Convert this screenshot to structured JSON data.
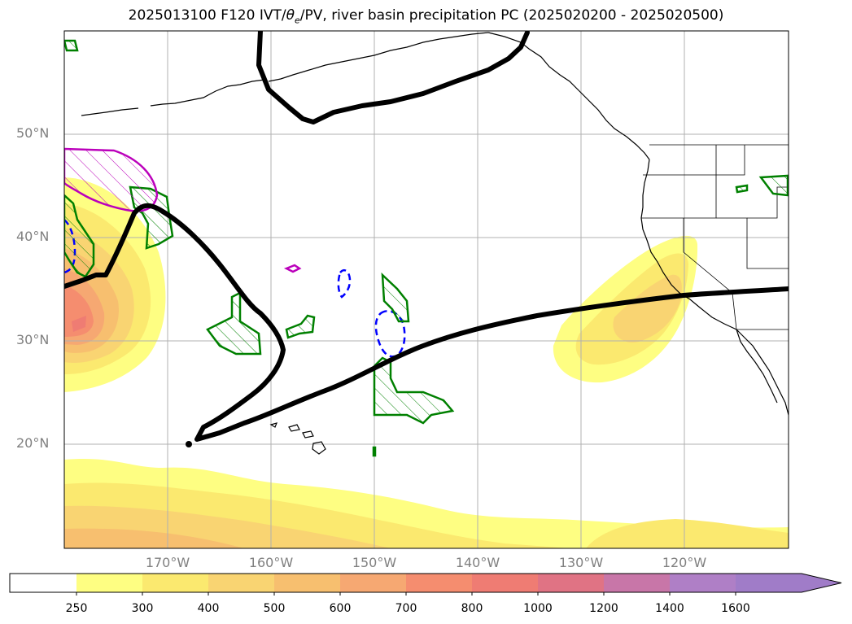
{
  "title": {
    "main": "2025013100 F120 IVT/",
    "theta": "θ",
    "sub": "e",
    "rest": "/PV, river basin precipitation PC (2025020200 - 2025020500)"
  },
  "map": {
    "projection": "PlateCarree",
    "extent_lon": [
      -180,
      -110
    ],
    "extent_lat": [
      10,
      60
    ],
    "gridlines": true,
    "lat_labels": [
      "50°N",
      "40°N",
      "30°N",
      "20°N"
    ],
    "lon_labels": [
      "170°W",
      "160°W",
      "150°W",
      "140°W",
      "130°W",
      "120°W"
    ]
  },
  "colorbar": {
    "ticks": [
      "250",
      "300",
      "400",
      "500",
      "600",
      "700",
      "800",
      "1000",
      "1200",
      "1400",
      "1600"
    ],
    "colors": [
      "#ffffff",
      "#fefe82",
      "#fbe96f",
      "#f9d472",
      "#f7bf6f",
      "#f6a872",
      "#f58d6f",
      "#ef7c73",
      "#e07384",
      "#c876a8",
      "#af7fc6"
    ],
    "extend": "max"
  },
  "legend_colors": {
    "pv_line": "#000000",
    "theta_e_positive": "#008000",
    "theta_e_negative": "#0000ff",
    "magenta_contour": "#bb00bb"
  }
}
